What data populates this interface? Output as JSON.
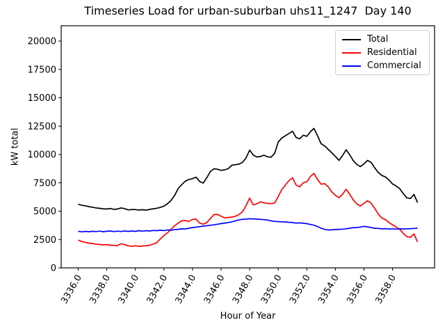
{
  "chart_data": {
    "type": "line",
    "title": "Timeseries Load for urban-suburban uhs11_1247  Day 140",
    "xlabel": "Hour of Year",
    "ylabel": "kW total",
    "x_start": 3336.0,
    "x_step": 0.25,
    "x_end": 3359.75,
    "xlim": [
      3334.81,
      3360.94
    ],
    "ylim": [
      0,
      21350
    ],
    "xticks": [
      3336,
      3338,
      3340,
      3342,
      3344,
      3346,
      3348,
      3350,
      3352,
      3354,
      3356,
      3358
    ],
    "xtick_labels": [
      "3336.0",
      "3338.0",
      "3340.0",
      "3342.0",
      "3344.0",
      "3346.0",
      "3348.0",
      "3350.0",
      "3352.0",
      "3354.0",
      "3356.0",
      "3358.0"
    ],
    "yticks": [
      0,
      2500,
      5000,
      7500,
      10000,
      12500,
      15000,
      17500,
      20000
    ],
    "ytick_labels": [
      "0",
      "2500",
      "5000",
      "7500",
      "10000",
      "12500",
      "15000",
      "17500",
      "20000"
    ],
    "grid": false,
    "legend_position": "upper right",
    "series": [
      {
        "name": "Total",
        "color": "#000000",
        "values": [
          5620,
          5520,
          5470,
          5400,
          5350,
          5290,
          5250,
          5210,
          5190,
          5240,
          5160,
          5190,
          5290,
          5230,
          5110,
          5150,
          5140,
          5100,
          5130,
          5090,
          5160,
          5210,
          5260,
          5330,
          5450,
          5650,
          5950,
          6400,
          7000,
          7350,
          7650,
          7800,
          7870,
          8000,
          7620,
          7480,
          7950,
          8500,
          8740,
          8700,
          8600,
          8650,
          8750,
          9050,
          9100,
          9150,
          9300,
          9700,
          10380,
          9950,
          9780,
          9820,
          9930,
          9800,
          9760,
          10100,
          11100,
          11450,
          11650,
          11850,
          12050,
          11500,
          11380,
          11700,
          11600,
          12000,
          12300,
          11650,
          10950,
          10750,
          10450,
          10150,
          9830,
          9480,
          9900,
          10420,
          9980,
          9450,
          9120,
          8930,
          9180,
          9480,
          9300,
          8820,
          8420,
          8150,
          8020,
          7750,
          7400,
          7220,
          6980,
          6550,
          6180,
          6120,
          6480,
          5760
        ]
      },
      {
        "name": "Residential",
        "color": "#ff0000",
        "values": [
          2450,
          2330,
          2250,
          2180,
          2150,
          2100,
          2060,
          2030,
          2050,
          2000,
          1980,
          1970,
          2120,
          2060,
          1940,
          1910,
          1950,
          1900,
          1930,
          1960,
          2000,
          2090,
          2230,
          2550,
          2850,
          3100,
          3400,
          3720,
          3950,
          4150,
          4180,
          4100,
          4280,
          4300,
          3950,
          3850,
          4000,
          4350,
          4700,
          4720,
          4550,
          4420,
          4450,
          4480,
          4550,
          4700,
          4950,
          5500,
          6150,
          5550,
          5650,
          5820,
          5750,
          5680,
          5660,
          5720,
          6300,
          6900,
          7300,
          7700,
          7950,
          7300,
          7150,
          7500,
          7600,
          8050,
          8330,
          7800,
          7380,
          7430,
          7150,
          6700,
          6400,
          6180,
          6500,
          6930,
          6500,
          6000,
          5650,
          5450,
          5700,
          5920,
          5700,
          5250,
          4750,
          4400,
          4250,
          4000,
          3800,
          3600,
          3400,
          3050,
          2750,
          2700,
          3000,
          2280
        ]
      },
      {
        "name": "Commercial",
        "color": "#0000ff",
        "values": [
          3230,
          3180,
          3220,
          3190,
          3230,
          3200,
          3240,
          3190,
          3230,
          3250,
          3200,
          3240,
          3210,
          3250,
          3220,
          3250,
          3220,
          3280,
          3240,
          3280,
          3250,
          3300,
          3280,
          3320,
          3290,
          3350,
          3320,
          3380,
          3400,
          3440,
          3430,
          3500,
          3560,
          3590,
          3640,
          3680,
          3720,
          3760,
          3800,
          3850,
          3900,
          3950,
          4000,
          4060,
          4150,
          4230,
          4280,
          4300,
          4330,
          4320,
          4300,
          4280,
          4250,
          4220,
          4150,
          4100,
          4080,
          4060,
          4050,
          4020,
          4000,
          3950,
          3970,
          3930,
          3900,
          3830,
          3760,
          3650,
          3500,
          3400,
          3340,
          3360,
          3380,
          3400,
          3420,
          3450,
          3500,
          3550,
          3560,
          3600,
          3660,
          3620,
          3550,
          3500,
          3480,
          3440,
          3460,
          3430,
          3450,
          3420,
          3440,
          3430,
          3450,
          3460,
          3480,
          3500
        ]
      }
    ]
  }
}
